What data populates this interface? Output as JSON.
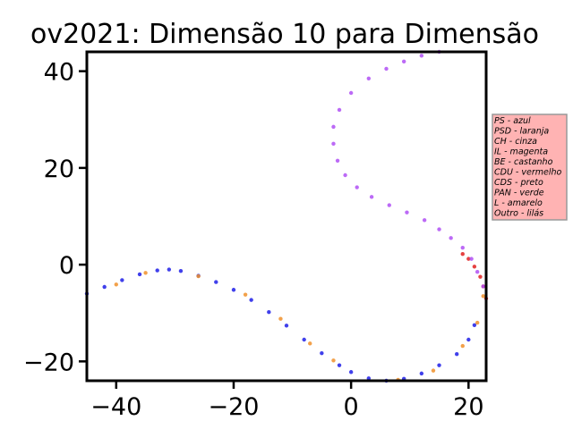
{
  "chart_data": {
    "type": "scatter",
    "title": "ov2021: Dimensão 10 para Dimensão",
    "xlabel": "",
    "ylabel": "",
    "xlim": [
      -45,
      23
    ],
    "ylim": [
      -24,
      44
    ],
    "xticks": [
      -40,
      -20,
      0,
      20
    ],
    "yticks": [
      -20,
      0,
      20,
      40
    ],
    "xtick_labels": [
      "−40",
      "−20",
      "0",
      "20"
    ],
    "ytick_labels": [
      "−20",
      "0",
      "20",
      "40"
    ],
    "grid": false,
    "legend_placement": "right-outside",
    "legend": [
      "PS - azul",
      "PSD - laranja",
      "CH - cinza",
      "IL - magenta",
      "BE - castanho",
      "CDU - vermelho",
      "CDS - preto",
      "PAN - verde",
      "L - amarelo",
      "Outro - lilás"
    ],
    "colors": {
      "azul": "#1f1fe8",
      "laranja": "#f0902a",
      "vermelho": "#e02020",
      "lilas": "#b050f5",
      "legend_bg": "#ffb3b3",
      "legend_border": "#999999"
    },
    "series": [
      {
        "group": "PS",
        "color_key": "azul",
        "x": [
          -45,
          -42,
          -39,
          -36,
          -33,
          -31,
          -29,
          -26,
          -23,
          -20,
          -17,
          -14,
          -11,
          -8,
          -5,
          -2,
          0,
          3,
          6,
          9,
          12,
          15,
          18,
          20,
          21
        ],
        "y": [
          -6,
          -4.6,
          -3.2,
          -2,
          -1.2,
          -1,
          -1.3,
          -2.3,
          -3.6,
          -5.2,
          -7.3,
          -9.8,
          -12.6,
          -15.5,
          -18.3,
          -20.8,
          -22.2,
          -23.5,
          -24,
          -23.6,
          -22.5,
          -20.8,
          -18.5,
          -15.5,
          -12.5
        ]
      },
      {
        "group": "PSD",
        "color_key": "laranja",
        "x": [
          -40,
          -35,
          -26,
          -18,
          -12,
          -7,
          -3,
          8,
          14,
          19,
          21.5,
          22.5
        ],
        "y": [
          -4.1,
          -1.7,
          -2.4,
          -6.2,
          -11.2,
          -16.3,
          -19.8,
          -23.8,
          -21.9,
          -16.8,
          -12,
          -6.5
        ]
      },
      {
        "group": "CDU",
        "color_key": "vermelho",
        "x": [
          19,
          20,
          21,
          22,
          22.5,
          23
        ],
        "y": [
          2.2,
          1.2,
          -0.4,
          -2.5,
          -4.5,
          -7
        ]
      },
      {
        "group": "Outro",
        "color_key": "lilas",
        "x": [
          15,
          12,
          9,
          6,
          3,
          0,
          -2,
          -3,
          -3,
          -2.3,
          -1,
          1,
          3.5,
          6.5,
          9.5,
          12.5,
          15,
          17,
          19,
          20.5,
          21.5,
          22.5
        ],
        "y": [
          44,
          43.2,
          42,
          40.5,
          38.5,
          35.5,
          32,
          28.5,
          25,
          21.5,
          18.5,
          16,
          14,
          12.3,
          10.8,
          9.2,
          7.3,
          5.5,
          3.5,
          1.2,
          -1.5,
          -4.5
        ]
      }
    ]
  }
}
